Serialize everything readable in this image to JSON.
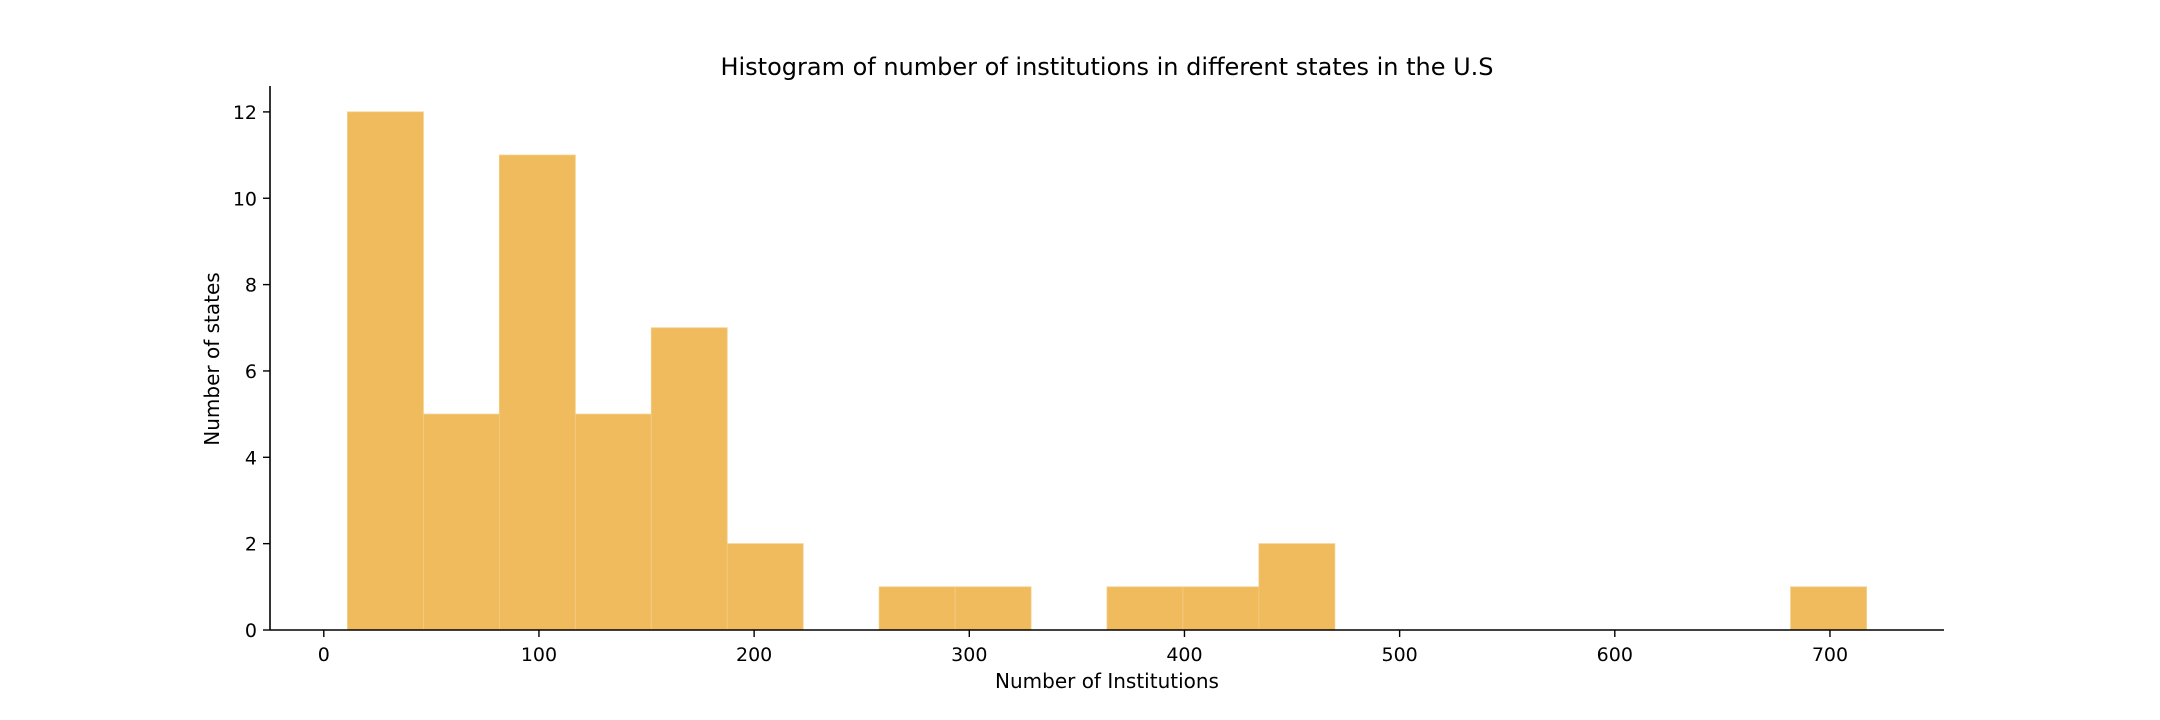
{
  "chart_data": {
    "type": "bar",
    "title": "Histogram of number of institutions in different states in the U.S",
    "xlabel": "Number of Institutions",
    "ylabel": "Number of states",
    "bin_edges": [
      11,
      46.3,
      81.6,
      116.9,
      152.2,
      187.5,
      222.8,
      258.1,
      293.4,
      328.7,
      364,
      399.3,
      434.6,
      469.9,
      505.2,
      540.5,
      575.8,
      611.1,
      646.4,
      681.7,
      717
    ],
    "values": [
      12,
      5,
      11,
      5,
      7,
      2,
      0,
      1,
      1,
      0,
      1,
      1,
      2,
      0,
      0,
      0,
      0,
      0,
      0,
      1
    ],
    "xlim": [
      -25,
      753
    ],
    "ylim": [
      0,
      12.6
    ],
    "x_ticks": [
      0,
      100,
      200,
      300,
      400,
      500,
      600,
      700
    ],
    "x_tick_labels": [
      "0",
      "100",
      "200",
      "300",
      "400",
      "500",
      "600",
      "700"
    ],
    "y_ticks": [
      0,
      2,
      4,
      6,
      8,
      10,
      12
    ],
    "y_tick_labels": [
      "0",
      "2",
      "4",
      "6",
      "8",
      "10",
      "12"
    ],
    "bar_color": "#efbb5d",
    "bar_edge_color": "#f3cd85",
    "grid": false,
    "legend": "none"
  }
}
